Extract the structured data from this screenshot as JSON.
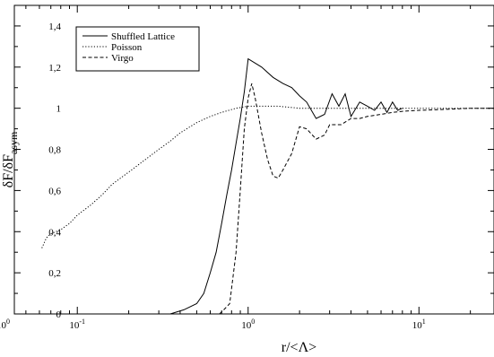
{
  "chart_data": {
    "type": "line",
    "title": "",
    "xlabel": "r/<Λ>",
    "ylabel_main": "δF/δF",
    "ylabel_sub": "asym",
    "x_scale": "log",
    "xlim": [
      0.0428,
      27.5
    ],
    "ylim": [
      0,
      1.5
    ],
    "grid": false,
    "legend_position": "top-left",
    "x_ticks": [
      {
        "value": 0.1,
        "base": "10",
        "exp": "-1"
      },
      {
        "value": 1,
        "label": "10",
        "exp": "0"
      },
      {
        "value": 10,
        "base": "10",
        "exp": "1"
      }
    ],
    "offscreen_x_tick": {
      "base": "10",
      "exp": "0"
    },
    "y_ticks": [
      {
        "value": 0,
        "label": "0"
      },
      {
        "value": 0.2,
        "label": "0,2"
      },
      {
        "value": 0.4,
        "label": "0,4"
      },
      {
        "value": 0.6,
        "label": "0,6"
      },
      {
        "value": 0.8,
        "label": "0,8"
      },
      {
        "value": 1.0,
        "label": "1"
      },
      {
        "value": 1.2,
        "label": "1,2"
      },
      {
        "value": 1.4,
        "label": "1,4"
      }
    ],
    "series": [
      {
        "name": "Shuffled Lattice",
        "style": "solid",
        "color": "#000000",
        "x": [
          0.35,
          0.42,
          0.5,
          0.55,
          0.6,
          0.65,
          0.7,
          0.75,
          0.8,
          0.85,
          0.9,
          0.95,
          1.0,
          1.2,
          1.4,
          1.6,
          1.8,
          2.0,
          2.2,
          2.5,
          2.8,
          3.1,
          3.4,
          3.7,
          4.0,
          4.5,
          5.0,
          5.5,
          6.0,
          6.5,
          7.0,
          7.5,
          8.0
        ],
        "y": [
          0.0,
          0.02,
          0.05,
          0.1,
          0.2,
          0.3,
          0.44,
          0.58,
          0.7,
          0.83,
          0.95,
          1.08,
          1.24,
          1.2,
          1.15,
          1.12,
          1.1,
          1.06,
          1.03,
          0.95,
          0.97,
          1.07,
          1.01,
          1.07,
          0.96,
          1.03,
          1.01,
          0.99,
          1.03,
          0.98,
          1.03,
          0.99,
          1.0
        ]
      },
      {
        "name": "Poisson",
        "style": "dotted",
        "color": "#000000",
        "x": [
          0.062,
          0.066,
          0.07,
          0.075,
          0.08,
          0.09,
          0.1,
          0.12,
          0.14,
          0.16,
          0.2,
          0.25,
          0.3,
          0.35,
          0.4,
          0.5,
          0.6,
          0.7,
          0.85,
          1.0,
          1.5,
          2.0,
          3.0,
          5.0,
          10.0,
          20.0,
          27.5
        ],
        "y": [
          0.32,
          0.37,
          0.39,
          0.4,
          0.41,
          0.44,
          0.48,
          0.53,
          0.58,
          0.63,
          0.69,
          0.75,
          0.8,
          0.84,
          0.88,
          0.93,
          0.96,
          0.98,
          1.0,
          1.01,
          1.01,
          1.0,
          1.0,
          1.0,
          1.0,
          1.0,
          1.0
        ]
      },
      {
        "name": "Virgo",
        "style": "dashed",
        "color": "#000000",
        "x": [
          0.68,
          0.72,
          0.78,
          0.85,
          0.9,
          0.95,
          1.0,
          1.05,
          1.1,
          1.2,
          1.3,
          1.4,
          1.5,
          1.6,
          1.8,
          2.0,
          2.2,
          2.5,
          2.8,
          3.0,
          3.5,
          4.0,
          4.5,
          5.0,
          6.0,
          7.0,
          8.0,
          10.0,
          15.0,
          20.0,
          27.5
        ],
        "y": [
          0.0,
          0.02,
          0.05,
          0.3,
          0.6,
          0.9,
          1.05,
          1.12,
          1.05,
          0.88,
          0.75,
          0.67,
          0.66,
          0.7,
          0.78,
          0.91,
          0.9,
          0.85,
          0.87,
          0.92,
          0.92,
          0.95,
          0.95,
          0.96,
          0.97,
          0.98,
          0.985,
          0.99,
          0.995,
          1.0,
          1.0
        ]
      }
    ]
  }
}
